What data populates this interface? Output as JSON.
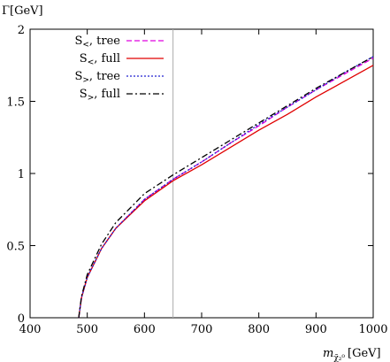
{
  "chart_data": {
    "type": "line",
    "ylabel": "Γ[GeV]",
    "xlabel": {
      "main": "m",
      "sub": "χ̃₂⁰",
      "unit": "[GeV]"
    },
    "xlim": [
      400,
      1000
    ],
    "ylim": [
      0,
      2
    ],
    "xticks": [
      400,
      500,
      600,
      700,
      800,
      900,
      1000
    ],
    "yticks": [
      0,
      0.5,
      1,
      1.5,
      2
    ],
    "ytick_labels": [
      "0",
      "0.5",
      "1",
      "1.5",
      "2"
    ],
    "vline": {
      "x": 650,
      "color": "#aaaaaa"
    },
    "legend_position": "top-left",
    "series": [
      {
        "name": "S<, tree",
        "label_main": "S",
        "label_sub": "<",
        "label_rest": ", tree",
        "color": "#e000e0",
        "dash": "6,3",
        "x": [
          485,
          490,
          500,
          525,
          550,
          600,
          650,
          700,
          750,
          800,
          850,
          900,
          950,
          1000
        ],
        "y": [
          0.0,
          0.14,
          0.28,
          0.48,
          0.62,
          0.82,
          0.96,
          1.08,
          1.21,
          1.33,
          1.46,
          1.58,
          1.69,
          1.8
        ]
      },
      {
        "name": "S<, full",
        "label_main": "S",
        "label_sub": "<",
        "label_rest": ", full",
        "color": "#e00000",
        "dash": "",
        "x": [
          485,
          490,
          500,
          525,
          550,
          600,
          650,
          700,
          750,
          800,
          850,
          900,
          950,
          1000
        ],
        "y": [
          0.0,
          0.14,
          0.28,
          0.48,
          0.62,
          0.81,
          0.95,
          1.06,
          1.18,
          1.3,
          1.41,
          1.53,
          1.64,
          1.75
        ]
      },
      {
        "name": "S>, tree",
        "label_main": "S",
        "label_sub": ">",
        "label_rest": ", tree",
        "color": "#2020d0",
        "dash": "2,2",
        "x": [
          485,
          490,
          500,
          525,
          550,
          600,
          650,
          700,
          750,
          800,
          850,
          900,
          950,
          1000
        ],
        "y": [
          0.0,
          0.14,
          0.28,
          0.48,
          0.62,
          0.82,
          0.96,
          1.08,
          1.21,
          1.34,
          1.46,
          1.58,
          1.7,
          1.81
        ]
      },
      {
        "name": "S>, full",
        "label_main": "S",
        "label_sub": ">",
        "label_rest": ", full",
        "color": "#000000",
        "dash": "7,3,2,3",
        "x": [
          485,
          490,
          500,
          525,
          550,
          600,
          650,
          700,
          750,
          800,
          850,
          900,
          950,
          1000
        ],
        "y": [
          0.0,
          0.15,
          0.3,
          0.51,
          0.66,
          0.86,
          0.99,
          1.11,
          1.23,
          1.35,
          1.47,
          1.59,
          1.7,
          1.81
        ]
      }
    ]
  }
}
